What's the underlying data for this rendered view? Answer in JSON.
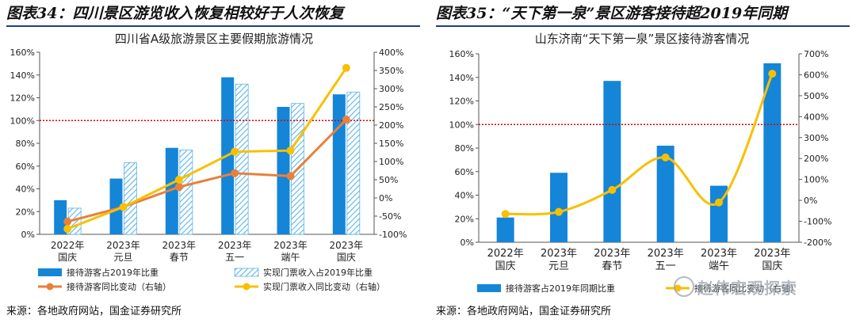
{
  "left": {
    "figure_title": "图表34：四川景区游览收入恢复相较好于人次恢复",
    "source": "来源：各地政府网站，国金证券研究所"
  },
  "right": {
    "figure_title": "图表35：“天下第一泉”景区游客接待超2019年同期",
    "source": "来源：各地政府网站，国金证券研究所"
  },
  "watermark": "赵伟宏观探索",
  "colors": {
    "blue": "#1585d8",
    "hatch": "#5ab4ea",
    "orange": "#e8803a",
    "yellow": "#f7c000",
    "ref": "#e00000",
    "navy": "#1d3f7a"
  },
  "chart_data": [
    {
      "type": "bar",
      "title": "四川省A级旅游景区主要假期旅游情况",
      "categories": [
        [
          "2022年",
          "国庆"
        ],
        [
          "2023年",
          "元旦"
        ],
        [
          "2023年",
          "春节"
        ],
        [
          "2023年",
          "五一"
        ],
        [
          "2023年",
          "端午"
        ],
        [
          "2023年",
          "国庆"
        ]
      ],
      "ylim_left": [
        0,
        160
      ],
      "ytick_left": [
        0,
        20,
        40,
        60,
        80,
        100,
        120,
        140,
        160
      ],
      "ylim_right": [
        -100,
        400
      ],
      "ytick_right": [
        -100,
        -50,
        0,
        50,
        100,
        150,
        200,
        250,
        300,
        350,
        400
      ],
      "reference_line": 100,
      "series": [
        {
          "name": "接待游客占2019年比重",
          "axis": "left",
          "kind": "bar",
          "style": "solid",
          "color": "#1585d8",
          "values": [
            30,
            49,
            76,
            138,
            112,
            123
          ]
        },
        {
          "name": "实现门票收入占2019年比重",
          "axis": "left",
          "kind": "bar",
          "style": "hatch",
          "color": "#5ab4ea",
          "values": [
            23,
            63,
            74,
            132,
            115,
            125
          ]
        },
        {
          "name": "接待游客同比变动（右轴）",
          "axis": "right",
          "kind": "line",
          "color": "#e8803a",
          "values": [
            -65,
            -25,
            30,
            68,
            60,
            215
          ]
        },
        {
          "name": "实现门票收入同比变动（右轴）",
          "axis": "right",
          "kind": "line",
          "color": "#f7c000",
          "values": [
            -85,
            -25,
            50,
            127,
            130,
            357
          ]
        }
      ],
      "legend_position": "bottom"
    },
    {
      "type": "bar",
      "title": "山东济南“天下第一泉”景区接待游客情况",
      "categories": [
        [
          "2022年",
          "国庆"
        ],
        [
          "2023年",
          "元旦"
        ],
        [
          "2023年",
          "春节"
        ],
        [
          "2023年",
          "五一"
        ],
        [
          "2023年",
          "端午"
        ],
        [
          "2023年",
          "国庆"
        ]
      ],
      "ylim_left": [
        0,
        160
      ],
      "ytick_left": [
        0,
        20,
        40,
        60,
        80,
        100,
        120,
        140,
        160
      ],
      "ylim_right": [
        -200,
        700
      ],
      "ytick_right": [
        -200,
        -100,
        0,
        100,
        200,
        300,
        400,
        500,
        600,
        700
      ],
      "reference_line": 100,
      "series": [
        {
          "name": "接待游客占2019年同期比重",
          "axis": "left",
          "kind": "bar",
          "style": "solid",
          "color": "#1585d8",
          "values": [
            21,
            59,
            137,
            82,
            48,
            152
          ]
        },
        {
          "name": "接待游客同比变动（右轴）",
          "axis": "right",
          "kind": "smooth",
          "color": "#f7c000",
          "values": [
            -65,
            -55,
            50,
            205,
            -10,
            605
          ]
        }
      ],
      "legend_position": "bottom"
    }
  ]
}
